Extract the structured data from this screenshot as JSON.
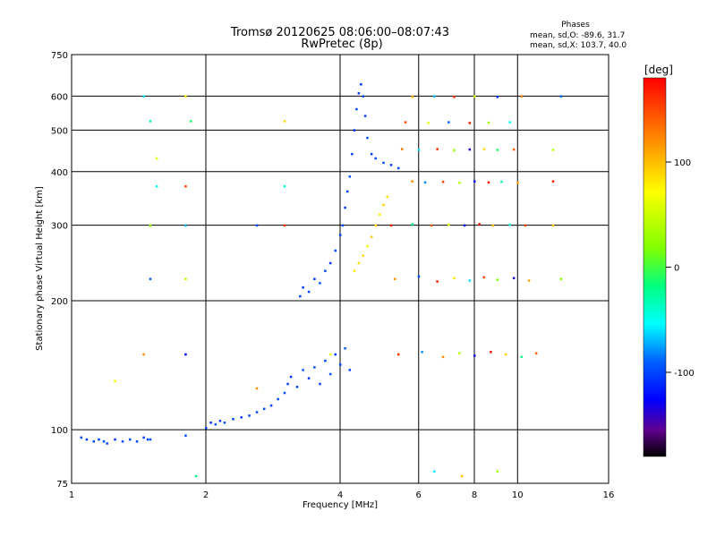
{
  "chart_data": {
    "type": "scatter",
    "title": "Tromsø 20120625 08:06:00–08:07:43",
    "subtitle": "RwPretec (8p)",
    "xlabel": "Frequency [MHz]",
    "ylabel": "Stationary phase Virtual Height [km]",
    "x_scale": "log",
    "y_scale": "log",
    "xlim": [
      1,
      16
    ],
    "ylim": [
      75,
      750
    ],
    "x_ticks": [
      1,
      2,
      4,
      6,
      8,
      10,
      16
    ],
    "x_tick_labels": [
      "1",
      "2",
      "4",
      "6",
      "8",
      "10",
      "16"
    ],
    "y_ticks": [
      75,
      100,
      200,
      300,
      400,
      500,
      600,
      750
    ],
    "y_tick_labels": [
      "75",
      "100",
      "200",
      "300",
      "400",
      "500",
      "600",
      "750"
    ],
    "grid": true,
    "stats": {
      "heading": "Phases",
      "o_line": "mean, sd,O: -89.6, 31.7",
      "x_line": "mean, sd,X: 103.7, 40.0"
    },
    "colorbar": {
      "label": "[deg]",
      "range": [
        -180,
        180
      ],
      "ticks": [
        100,
        0,
        -100
      ],
      "tick_labels": [
        "100",
        "0",
        "-100"
      ]
    },
    "series": [
      {
        "point_color": "phase",
        "points": [
          [
            1.05,
            96,
            -100
          ],
          [
            1.08,
            95,
            -105
          ],
          [
            1.12,
            94,
            -98
          ],
          [
            1.15,
            95,
            -102
          ],
          [
            1.18,
            94,
            -95
          ],
          [
            1.2,
            93,
            -100
          ],
          [
            1.25,
            95,
            -108
          ],
          [
            1.3,
            94,
            -99
          ],
          [
            1.35,
            95,
            -101
          ],
          [
            1.4,
            94,
            -97
          ],
          [
            1.45,
            96,
            -103
          ],
          [
            1.48,
            95,
            -100
          ],
          [
            1.5,
            95,
            -96
          ],
          [
            1.8,
            97,
            -95
          ],
          [
            2.0,
            101,
            -100
          ],
          [
            2.05,
            104,
            -110
          ],
          [
            2.1,
            103,
            -98
          ],
          [
            2.15,
            105,
            -102
          ],
          [
            2.2,
            104,
            -95
          ],
          [
            2.3,
            106,
            -100
          ],
          [
            2.4,
            107,
            -105
          ],
          [
            2.5,
            108,
            -99
          ],
          [
            2.6,
            110,
            -100
          ],
          [
            2.7,
            112,
            -97
          ],
          [
            2.8,
            114,
            -103
          ],
          [
            2.9,
            118,
            -100
          ],
          [
            3.0,
            122,
            -96
          ],
          [
            3.05,
            128,
            -102
          ],
          [
            3.1,
            133,
            -108
          ],
          [
            3.2,
            126,
            -100
          ],
          [
            3.3,
            138,
            -95
          ],
          [
            3.4,
            132,
            -105
          ],
          [
            3.5,
            140,
            -99
          ],
          [
            3.6,
            128,
            -103
          ],
          [
            3.7,
            145,
            -100
          ],
          [
            3.8,
            135,
            -98
          ],
          [
            3.9,
            150,
            -104
          ],
          [
            4.0,
            142,
            -100
          ],
          [
            4.1,
            155,
            -96
          ],
          [
            4.2,
            138,
            -102
          ],
          [
            3.25,
            205,
            -100
          ],
          [
            3.3,
            215,
            -105
          ],
          [
            3.4,
            210,
            -98
          ],
          [
            3.5,
            225,
            -102
          ],
          [
            3.6,
            220,
            -95
          ],
          [
            3.7,
            235,
            -100
          ],
          [
            3.8,
            245,
            -108
          ],
          [
            3.9,
            262,
            -99
          ],
          [
            4.0,
            285,
            -100
          ],
          [
            4.05,
            300,
            -97
          ],
          [
            4.1,
            330,
            -103
          ],
          [
            4.15,
            360,
            -100
          ],
          [
            4.2,
            390,
            -96
          ],
          [
            4.25,
            440,
            -102
          ],
          [
            4.3,
            500,
            -110
          ],
          [
            4.35,
            560,
            -98
          ],
          [
            4.4,
            610,
            -100
          ],
          [
            4.45,
            640,
            -105
          ],
          [
            4.5,
            600,
            -99
          ],
          [
            4.55,
            540,
            -100
          ],
          [
            4.6,
            480,
            -97
          ],
          [
            4.7,
            440,
            -103
          ],
          [
            4.8,
            430,
            -100
          ],
          [
            5.0,
            420,
            -96
          ],
          [
            5.2,
            415,
            -102
          ],
          [
            5.4,
            408,
            -98
          ],
          [
            4.3,
            235,
            80
          ],
          [
            4.4,
            245,
            85
          ],
          [
            4.5,
            255,
            90
          ],
          [
            4.6,
            268,
            78
          ],
          [
            4.7,
            282,
            95
          ],
          [
            4.8,
            300,
            88
          ],
          [
            4.9,
            318,
            82
          ],
          [
            5.0,
            335,
            92
          ],
          [
            5.1,
            350,
            86
          ],
          [
            5.8,
            380,
            120
          ],
          [
            6.2,
            378,
            -80
          ],
          [
            6.8,
            379,
            150
          ],
          [
            7.4,
            377,
            40
          ],
          [
            8.0,
            380,
            -120
          ],
          [
            8.6,
            378,
            170
          ],
          [
            9.2,
            379,
            -30
          ],
          [
            10.0,
            377,
            110
          ],
          [
            5.5,
            452,
            130
          ],
          [
            6.0,
            450,
            -60
          ],
          [
            6.6,
            452,
            160
          ],
          [
            7.2,
            449,
            20
          ],
          [
            7.8,
            451,
            -140
          ],
          [
            8.4,
            452,
            90
          ],
          [
            9.0,
            450,
            -10
          ],
          [
            9.8,
            451,
            140
          ],
          [
            5.6,
            522,
            150
          ],
          [
            6.3,
            520,
            60
          ],
          [
            7.0,
            522,
            -90
          ],
          [
            7.8,
            520,
            170
          ],
          [
            8.6,
            521,
            30
          ],
          [
            9.6,
            522,
            -50
          ],
          [
            5.8,
            598,
            100
          ],
          [
            6.5,
            600,
            -70
          ],
          [
            7.2,
            598,
            160
          ],
          [
            8.0,
            600,
            50
          ],
          [
            9.0,
            598,
            -110
          ],
          [
            10.2,
            600,
            130
          ],
          [
            5.2,
            300,
            170
          ],
          [
            5.8,
            302,
            -20
          ],
          [
            6.4,
            300,
            140
          ],
          [
            7.0,
            301,
            60
          ],
          [
            7.6,
            300,
            -120
          ],
          [
            8.2,
            302,
            175
          ],
          [
            8.8,
            300,
            100
          ],
          [
            9.6,
            301,
            -40
          ],
          [
            10.4,
            300,
            150
          ],
          [
            5.3,
            225,
            120
          ],
          [
            6.0,
            228,
            -100
          ],
          [
            6.6,
            222,
            170
          ],
          [
            7.2,
            226,
            80
          ],
          [
            7.8,
            223,
            -60
          ],
          [
            8.4,
            227,
            150
          ],
          [
            9.0,
            224,
            20
          ],
          [
            9.8,
            226,
            -140
          ],
          [
            10.6,
            223,
            110
          ],
          [
            5.4,
            150,
            160
          ],
          [
            6.1,
            152,
            -80
          ],
          [
            6.8,
            148,
            120
          ],
          [
            7.4,
            151,
            40
          ],
          [
            8.0,
            149,
            -130
          ],
          [
            8.7,
            152,
            175
          ],
          [
            9.4,
            150,
            90
          ],
          [
            10.2,
            148,
            -20
          ],
          [
            11.0,
            151,
            140
          ],
          [
            1.45,
            600,
            -60
          ],
          [
            1.5,
            525,
            -20
          ],
          [
            1.55,
            430,
            60
          ],
          [
            1.55,
            370,
            -50
          ],
          [
            1.5,
            300,
            30
          ],
          [
            1.5,
            225,
            -90
          ],
          [
            1.45,
            150,
            120
          ],
          [
            1.8,
            600,
            80
          ],
          [
            1.85,
            525,
            -10
          ],
          [
            1.8,
            370,
            150
          ],
          [
            1.8,
            300,
            -70
          ],
          [
            1.8,
            225,
            40
          ],
          [
            1.8,
            150,
            -120
          ],
          [
            3.0,
            525,
            90
          ],
          [
            3.0,
            370,
            -40
          ],
          [
            3.0,
            300,
            160
          ],
          [
            2.6,
            300,
            -100
          ],
          [
            3.8,
            150,
            60
          ],
          [
            12.0,
            450,
            40
          ],
          [
            12.0,
            380,
            170
          ],
          [
            12.5,
            600,
            -90
          ],
          [
            12.0,
            300,
            100
          ],
          [
            12.5,
            225,
            20
          ],
          [
            6.5,
            80,
            -60
          ],
          [
            7.5,
            78,
            100
          ],
          [
            9.0,
            80,
            30
          ],
          [
            1.9,
            78,
            -20
          ],
          [
            1.25,
            130,
            70
          ],
          [
            2.6,
            125,
            120
          ]
        ]
      }
    ]
  }
}
